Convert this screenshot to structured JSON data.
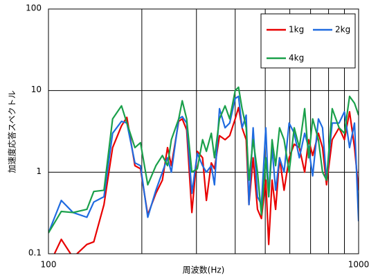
{
  "chart_data": {
    "type": "line",
    "xlabel": "周波数(Hz)",
    "ylabel": "加速度応答スペクトル",
    "xscale": "log",
    "yscale": "log",
    "xlim": [
      100,
      1000
    ],
    "ylim": [
      0.1,
      100
    ],
    "xticks": [
      100,
      1000
    ],
    "yticks": [
      0.1,
      1,
      10,
      100
    ],
    "x_minor_grid": [
      200,
      300,
      400,
      500,
      600,
      700,
      800,
      900
    ],
    "grid": true,
    "legend": "upper right",
    "x": [
      100,
      110,
      120,
      133,
      140,
      151,
      161,
      172,
      179,
      190,
      198,
      209,
      222,
      233,
      242,
      249,
      263,
      270,
      279,
      290,
      302,
      314,
      323,
      335,
      343,
      356,
      371,
      384,
      400,
      410,
      421,
      434,
      443,
      457,
      472,
      486,
      502,
      513,
      526,
      540,
      556,
      575,
      597,
      620,
      644,
      670,
      690,
      711,
      742,
      765,
      788,
      822,
      865,
      900,
      935,
      970,
      1000
    ],
    "series": [
      {
        "name": "1kg",
        "color": "#e80000",
        "values": [
          0.07,
          0.15,
          0.09,
          0.13,
          0.14,
          0.4,
          2,
          3.7,
          4.7,
          1.2,
          1.1,
          0.3,
          0.55,
          0.8,
          2.0,
          1.2,
          4.2,
          4.5,
          3.3,
          0.32,
          1.8,
          1.5,
          0.45,
          1.3,
          1.1,
          2.8,
          2.5,
          2.8,
          4.5,
          6.2,
          3.5,
          2.5,
          0.4,
          1.5,
          0.35,
          0.27,
          0.8,
          0.13,
          0.8,
          0.35,
          1.5,
          0.6,
          1.5,
          2.2,
          2.0,
          1.0,
          2.5,
          1.6,
          3.0,
          2.0,
          0.7,
          2.5,
          3.5,
          2.5,
          5.5,
          2.0,
          0.6
        ]
      },
      {
        "name": "2kg",
        "color": "#1f6be0",
        "values": [
          0.18,
          0.45,
          0.32,
          0.28,
          0.43,
          0.5,
          3.0,
          4.2,
          4.0,
          1.3,
          1.2,
          0.28,
          0.6,
          1.0,
          1.5,
          1.0,
          4.5,
          4.8,
          4.0,
          0.55,
          1.7,
          1.2,
          1.0,
          1.2,
          0.7,
          6.0,
          3.5,
          4.0,
          8.0,
          8.5,
          3.5,
          5.0,
          0.4,
          3.5,
          0.5,
          0.4,
          3.5,
          0.5,
          2.0,
          0.6,
          1.5,
          1.0,
          4.0,
          3.0,
          1.5,
          3.0,
          2.0,
          0.9,
          4.5,
          3.5,
          0.8,
          4.0,
          4.0,
          5.5,
          2.0,
          4.0,
          0.25
        ]
      },
      {
        "name": "4kg",
        "color": "#1aa04a",
        "values": [
          0.18,
          0.33,
          0.32,
          0.35,
          0.58,
          0.6,
          4.5,
          6.5,
          4.0,
          2.0,
          2.3,
          0.7,
          1.2,
          1.6,
          1.2,
          2.5,
          4.5,
          7.5,
          4.5,
          1.0,
          1.1,
          2.5,
          1.8,
          3.0,
          1.5,
          4.5,
          6.5,
          4.5,
          10.0,
          11.0,
          6.0,
          3.5,
          0.8,
          2.5,
          1.0,
          0.3,
          1.5,
          0.5,
          2.5,
          1.2,
          3.5,
          2.5,
          1.0,
          3.5,
          2.0,
          6.0,
          1.5,
          4.5,
          2.5,
          1.0,
          0.8,
          6.0,
          3.5,
          3.0,
          8.5,
          7.0,
          5.0
        ]
      }
    ]
  }
}
